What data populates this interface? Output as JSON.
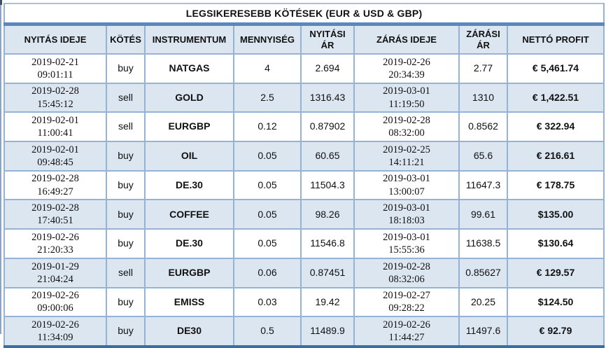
{
  "title": "LEGSIKERESEBB KÖTÉSEK (EUR & USD & GBP)",
  "colors": {
    "row_alt_fill": "#dce6f1",
    "cell_border": "#95b3d7",
    "title_separator": "#5d87ba",
    "bottom_edge": "#3a6ca6",
    "text": "#111111"
  },
  "table": {
    "columns": [
      "NYITÁS IDEJE",
      "KÖTÉS",
      "INSTRUMENTUM",
      "MENNYISÉG",
      "NYITÁSI ÁR",
      "ZÁRÁS IDEJE",
      "ZÁRÁSI ÁR",
      "NETTÓ PROFIT"
    ],
    "rows": [
      {
        "open_date": "2019-02-21",
        "open_time": "09:01:11",
        "side": "buy",
        "instrument": "NATGAS",
        "quantity": "4",
        "open_price": "2.694",
        "close_date": "2019-02-26",
        "close_time": "20:34:39",
        "close_price": "2.77",
        "net_profit": "€ 5,461.74"
      },
      {
        "open_date": "2019-02-28",
        "open_time": "15:45:12",
        "side": "sell",
        "instrument": "GOLD",
        "quantity": "2.5",
        "open_price": "1316.43",
        "close_date": "2019-03-01",
        "close_time": "11:19:50",
        "close_price": "1310",
        "net_profit": "€ 1,422.51"
      },
      {
        "open_date": "2019-02-01",
        "open_time": "11:00:41",
        "side": "sell",
        "instrument": "EURGBP",
        "quantity": "0.12",
        "open_price": "0.87902",
        "close_date": "2019-02-28",
        "close_time": "08:32:00",
        "close_price": "0.8562",
        "net_profit": "€ 322.94"
      },
      {
        "open_date": "2019-02-01",
        "open_time": "09:48:45",
        "side": "buy",
        "instrument": "OIL",
        "quantity": "0.05",
        "open_price": "60.65",
        "close_date": "2019-02-25",
        "close_time": "14:11:21",
        "close_price": "65.6",
        "net_profit": "€ 216.61"
      },
      {
        "open_date": "2019-02-28",
        "open_time": "16:49:27",
        "side": "buy",
        "instrument": "DE.30",
        "quantity": "0.05",
        "open_price": "11504.3",
        "close_date": "2019-03-01",
        "close_time": "13:00:07",
        "close_price": "11647.3",
        "net_profit": "€ 178.75"
      },
      {
        "open_date": "2019-02-28",
        "open_time": "17:40:51",
        "side": "buy",
        "instrument": "COFFEE",
        "quantity": "0.05",
        "open_price": "98.26",
        "close_date": "2019-03-01",
        "close_time": "18:18:03",
        "close_price": "99.61",
        "net_profit": "$135.00"
      },
      {
        "open_date": "2019-02-26",
        "open_time": "21:20:33",
        "side": "buy",
        "instrument": "DE.30",
        "quantity": "0.05",
        "open_price": "11546.8",
        "close_date": "2019-03-01",
        "close_time": "15:55:36",
        "close_price": "11638.5",
        "net_profit": "$130.64"
      },
      {
        "open_date": "2019-01-29",
        "open_time": "21:04:24",
        "side": "sell",
        "instrument": "EURGBP",
        "quantity": "0.06",
        "open_price": "0.87451",
        "close_date": "2019-02-28",
        "close_time": "08:32:06",
        "close_price": "0.85627",
        "net_profit": "€ 129.57"
      },
      {
        "open_date": "2019-02-26",
        "open_time": "09:00:06",
        "side": "buy",
        "instrument": "EMISS",
        "quantity": "0.03",
        "open_price": "19.42",
        "close_date": "2019-02-27",
        "close_time": "09:28:22",
        "close_price": "20.25",
        "net_profit": "$124.50"
      },
      {
        "open_date": "2019-02-26",
        "open_time": "11:34:09",
        "side": "buy",
        "instrument": "DE30",
        "quantity": "0.5",
        "open_price": "11489.9",
        "close_date": "2019-02-26",
        "close_time": "11:44:27",
        "close_price": "11497.6",
        "net_profit": "€ 92.79"
      }
    ]
  }
}
